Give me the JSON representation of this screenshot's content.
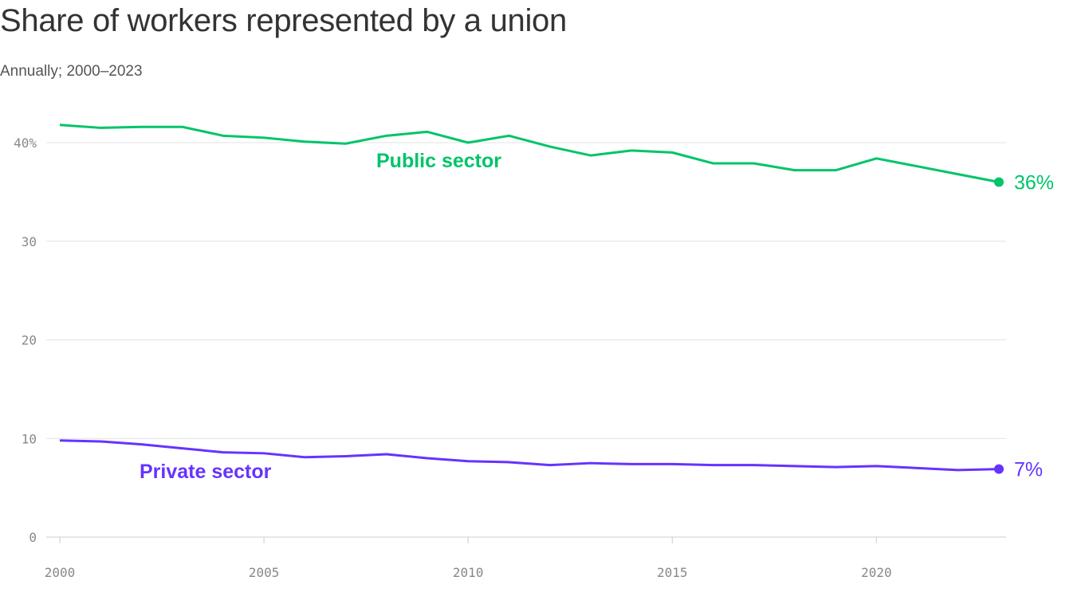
{
  "chart_data": {
    "type": "line",
    "title": "Share of workers represented by a union",
    "subtitle": "Annually; 2000–2023",
    "x": [
      2000,
      2001,
      2002,
      2003,
      2004,
      2005,
      2006,
      2007,
      2008,
      2009,
      2010,
      2011,
      2012,
      2013,
      2014,
      2015,
      2016,
      2017,
      2018,
      2019,
      2020,
      2021,
      2022,
      2023
    ],
    "series": [
      {
        "name": "Public sector",
        "color": "#00c46a",
        "end_label": "36%",
        "values": [
          41.8,
          41.5,
          41.6,
          41.6,
          40.7,
          40.5,
          40.1,
          39.9,
          40.7,
          41.1,
          40.0,
          40.7,
          39.6,
          38.7,
          39.2,
          39.0,
          37.9,
          37.9,
          37.2,
          37.2,
          38.4,
          37.6,
          36.8,
          36.0
        ]
      },
      {
        "name": "Private sector",
        "color": "#6633ff",
        "end_label": "7%",
        "values": [
          9.8,
          9.7,
          9.4,
          9.0,
          8.6,
          8.5,
          8.1,
          8.2,
          8.4,
          8.0,
          7.7,
          7.6,
          7.3,
          7.5,
          7.4,
          7.4,
          7.3,
          7.3,
          7.2,
          7.1,
          7.2,
          7.0,
          6.8,
          6.9
        ]
      }
    ],
    "yticks": [
      {
        "v": 0,
        "label": "0"
      },
      {
        "v": 10,
        "label": "10"
      },
      {
        "v": 20,
        "label": "20"
      },
      {
        "v": 30,
        "label": "30"
      },
      {
        "v": 40,
        "label": "40%"
      }
    ],
    "xticks": [
      {
        "v": 2000,
        "label": "2000"
      },
      {
        "v": 2005,
        "label": "2005"
      },
      {
        "v": 2010,
        "label": "2010"
      },
      {
        "v": 2015,
        "label": "2015"
      },
      {
        "v": 2020,
        "label": "2020"
      }
    ],
    "xlim": [
      2000,
      2023
    ],
    "ylim": [
      0,
      40
    ],
    "grid": true,
    "xlabel": "",
    "ylabel": ""
  }
}
